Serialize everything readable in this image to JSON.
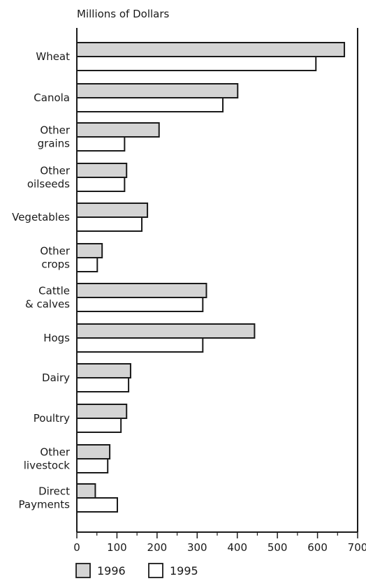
{
  "chart_data": {
    "type": "bar",
    "orientation": "horizontal",
    "title": "Millions of Dollars",
    "xlabel": "",
    "ylabel": "",
    "xlim": [
      0,
      700
    ],
    "xticks": [
      0,
      100,
      200,
      300,
      400,
      500,
      600,
      700
    ],
    "grid": false,
    "legend_position": "bottom-left",
    "categories": [
      [
        "Wheat"
      ],
      [
        "Canola"
      ],
      [
        "Other",
        "grains"
      ],
      [
        "Other",
        "oilseeds"
      ],
      [
        "Vegetables"
      ],
      [
        "Other",
        "crops"
      ],
      [
        "Cattle",
        "& calves"
      ],
      [
        "Hogs"
      ],
      [
        "Dairy"
      ],
      [
        "Poultry"
      ],
      [
        "Other",
        "livestock"
      ],
      [
        "Direct",
        "Payments"
      ]
    ],
    "series": [
      {
        "name": "1996",
        "color": "#d4d4d4",
        "values": [
          667,
          401,
          205,
          124,
          176,
          63,
          323,
          443,
          134,
          124,
          82,
          46
        ]
      },
      {
        "name": "1995",
        "color": "#ffffff",
        "values": [
          596,
          364,
          119,
          119,
          162,
          51,
          314,
          314,
          129,
          110,
          77,
          101
        ]
      }
    ]
  }
}
